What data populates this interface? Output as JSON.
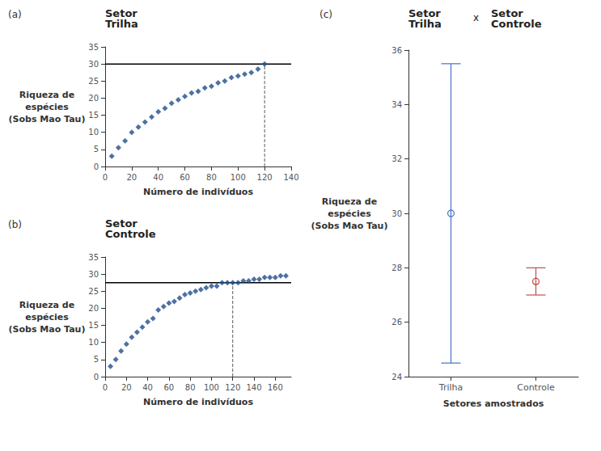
{
  "chart_data": [
    {
      "type": "scatter",
      "annotations": [
        "(a)"
      ],
      "title": "Setor\nTrilha",
      "xlabel": "Número de indivíduos",
      "ylabel": "Riqueza de\nespécies\n(Sobs Mao Tau)",
      "x": [
        5,
        10,
        15,
        20,
        25,
        30,
        35,
        40,
        45,
        50,
        55,
        60,
        65,
        70,
        75,
        80,
        85,
        90,
        95,
        100,
        105,
        110,
        115,
        120
      ],
      "values": [
        3,
        5.5,
        7.5,
        10,
        11.5,
        13,
        14.5,
        16,
        17,
        18.5,
        19.5,
        20.5,
        21.5,
        22,
        23,
        23.5,
        24.5,
        25,
        26,
        26.5,
        27,
        27.5,
        28.5,
        30
      ],
      "color": "#1f4e8c",
      "marker": "diamond",
      "hline": {
        "y": 30,
        "color": "#000000"
      },
      "vline": {
        "x": 120,
        "color": "#5a5a5a",
        "line_style": "dashed"
      },
      "xlim": [
        0,
        140
      ],
      "ylim": [
        0,
        35
      ],
      "xticks": [
        0,
        20,
        40,
        60,
        80,
        100,
        120,
        140
      ],
      "yticks": [
        0,
        5,
        10,
        15,
        20,
        25,
        30,
        35
      ],
      "grid": false
    },
    {
      "type": "scatter",
      "annotations": [
        "(b)"
      ],
      "title": "Setor\nControle",
      "xlabel": "Número de indivíduos",
      "ylabel": "Riqueza de\nespécies\n(Sobs Mao Tau)",
      "x": [
        5,
        10,
        15,
        20,
        25,
        30,
        35,
        40,
        45,
        50,
        55,
        60,
        65,
        70,
        75,
        80,
        85,
        90,
        95,
        100,
        105,
        110,
        115,
        120,
        125,
        130,
        135,
        140,
        145,
        150,
        155,
        160,
        165,
        170
      ],
      "values": [
        3,
        5,
        7.5,
        9.5,
        11.5,
        13,
        14.5,
        16,
        17,
        19.5,
        20.5,
        21.5,
        22,
        23,
        24,
        24.5,
        25,
        25.5,
        26,
        26.5,
        26.5,
        27.5,
        27.5,
        27.5,
        27.5,
        28,
        28,
        28.5,
        28.5,
        29,
        29,
        29,
        29.5,
        29.5
      ],
      "color": "#1f4e8c",
      "marker": "diamond",
      "hline": {
        "y": 27.5,
        "color": "#000000"
      },
      "vline": {
        "x": 120,
        "color": "#5a5a5a",
        "line_style": "dashed"
      },
      "xlim": [
        0,
        175
      ],
      "ylim": [
        0,
        35
      ],
      "xticks": [
        0,
        20,
        40,
        60,
        80,
        100,
        120,
        140,
        160
      ],
      "yticks": [
        0,
        5,
        10,
        15,
        20,
        25,
        30,
        35
      ],
      "grid": false
    },
    {
      "type": "errorbar",
      "annotations": [
        "(c)"
      ],
      "title": [
        "Setor\nTrilha",
        "x",
        "Setor\nControle"
      ],
      "xlabel": "Setores amostrados",
      "ylabel": "Riqueza de\nespécies\n(Sobs Mao Tau)",
      "categories": [
        "Trilha",
        "Controle"
      ],
      "values": [
        30,
        27.5
      ],
      "err_low": [
        5.5,
        0.5
      ],
      "err_high": [
        5.5,
        0.5
      ],
      "colors": [
        "#4472c4",
        "#c0504d"
      ],
      "marker": "circle",
      "ylim": [
        24,
        36
      ],
      "yticks": [
        24,
        26,
        28,
        30,
        32,
        34,
        36
      ],
      "grid": false
    }
  ]
}
